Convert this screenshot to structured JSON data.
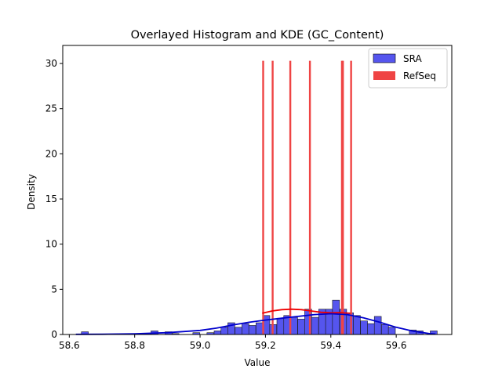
{
  "chart_data": {
    "type": "bar",
    "title": "Overlayed Histogram and KDE (GC_Content)",
    "xlabel": "Value",
    "ylabel": "Density",
    "xlim": [
      58.58,
      59.77
    ],
    "ylim": [
      0,
      32
    ],
    "xticks": [
      "58.6",
      "58.8",
      "59.0",
      "59.2",
      "59.4",
      "59.6"
    ],
    "yticks": [
      "0",
      "5",
      "10",
      "15",
      "20",
      "25",
      "30"
    ],
    "legend_position": "top-right",
    "colors": {
      "sra": "#5555ee",
      "sra_line": "#0000cc",
      "refseq": "#ef4444",
      "refseq_line": "#ee0000"
    },
    "series": [
      {
        "name": "SRA",
        "bin_width": 0.0213,
        "bins": [
          [
            58.637,
            0.3
          ],
          [
            58.829,
            0.1
          ],
          [
            58.85,
            0.4
          ],
          [
            58.893,
            0.3
          ],
          [
            58.914,
            0.1
          ],
          [
            58.978,
            0.2
          ],
          [
            59.021,
            0.2
          ],
          [
            59.043,
            0.4
          ],
          [
            59.064,
            0.8
          ],
          [
            59.085,
            1.3
          ],
          [
            59.107,
            0.8
          ],
          [
            59.128,
            1.2
          ],
          [
            59.149,
            1.0
          ],
          [
            59.171,
            1.3
          ],
          [
            59.192,
            2.1
          ],
          [
            59.213,
            1.1
          ],
          [
            59.235,
            1.8
          ],
          [
            59.256,
            2.1
          ],
          [
            59.277,
            1.9
          ],
          [
            59.299,
            1.7
          ],
          [
            59.32,
            2.8
          ],
          [
            59.341,
            1.9
          ],
          [
            59.363,
            2.8
          ],
          [
            59.384,
            2.8
          ],
          [
            59.405,
            3.8
          ],
          [
            59.427,
            2.8
          ],
          [
            59.448,
            2.4
          ],
          [
            59.469,
            2.1
          ],
          [
            59.491,
            1.5
          ],
          [
            59.512,
            1.2
          ],
          [
            59.533,
            2.0
          ],
          [
            59.555,
            1.1
          ],
          [
            59.576,
            0.8
          ],
          [
            59.64,
            0.5
          ],
          [
            59.661,
            0.4
          ],
          [
            59.704,
            0.4
          ]
        ],
        "kde": [
          [
            58.62,
            0.02
          ],
          [
            58.7,
            0.03
          ],
          [
            58.8,
            0.08
          ],
          [
            58.9,
            0.2
          ],
          [
            59.0,
            0.45
          ],
          [
            59.05,
            0.7
          ],
          [
            59.1,
            1.05
          ],
          [
            59.15,
            1.35
          ],
          [
            59.2,
            1.6
          ],
          [
            59.25,
            1.8
          ],
          [
            59.3,
            2.0
          ],
          [
            59.35,
            2.2
          ],
          [
            59.4,
            2.3
          ],
          [
            59.45,
            2.2
          ],
          [
            59.5,
            1.85
          ],
          [
            59.55,
            1.35
          ],
          [
            59.6,
            0.8
          ],
          [
            59.65,
            0.38
          ],
          [
            59.7,
            0.1
          ],
          [
            59.72,
            0.05
          ]
        ]
      },
      {
        "name": "RefSeq",
        "lines_x": [
          59.193,
          59.222,
          59.276,
          59.336,
          59.434,
          59.437,
          59.462
        ],
        "bar_height": 30.3,
        "kde": [
          [
            59.19,
            2.35
          ],
          [
            59.22,
            2.6
          ],
          [
            59.25,
            2.75
          ],
          [
            59.28,
            2.8
          ],
          [
            59.31,
            2.75
          ],
          [
            59.34,
            2.6
          ],
          [
            59.37,
            2.45
          ],
          [
            59.4,
            2.4
          ],
          [
            59.43,
            2.42
          ],
          [
            59.46,
            2.35
          ]
        ]
      }
    ]
  }
}
